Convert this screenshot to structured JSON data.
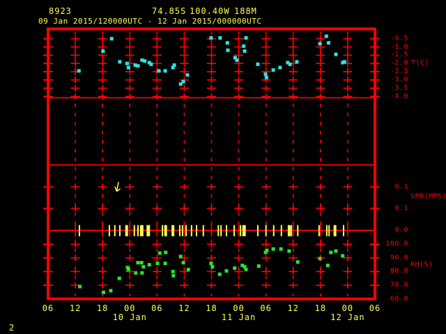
{
  "header": {
    "station_id": "8923",
    "latitude": "74.85S",
    "longitude": "100.40W",
    "elevation": "188M",
    "period": "09 Jan 2015/120000UTC - 12 Jan 2015/000000UTC"
  },
  "page_number": "2",
  "colors": {
    "background": "#000000",
    "frame": "#ff0000",
    "axis_text": "#ff0000",
    "label_text": "#ffff4d",
    "temperature": "#2fe3e3",
    "humidity": "#2ee02e",
    "wind": "#ffff55"
  },
  "x_axis": {
    "hour_labels": [
      "06",
      "12",
      "18",
      "00",
      "06",
      "12",
      "18",
      "00",
      "06",
      "12",
      "18",
      "00",
      "06"
    ],
    "date_labels": [
      {
        "label": "10 Jan",
        "tick_index": 3
      },
      {
        "label": "11 Jan",
        "tick_index": 7
      },
      {
        "label": "12 Jan",
        "tick_index": 11
      }
    ],
    "interval_hours": 6,
    "total_hours": 72
  },
  "chart_data": [
    {
      "type": "scatter",
      "panel": "temperature",
      "ylabel": "T(C)",
      "marker": "square",
      "color": "#2fe3e3",
      "y_tick_labels": [
        "-0.5",
        "-1.0",
        "-1.5",
        "-2.0",
        "-2.5",
        "-3.0",
        "-3.5",
        "-4.0"
      ],
      "y_tick_values": [
        -0.5,
        -1.0,
        -1.5,
        -2.0,
        -2.5,
        -3.0,
        -3.5,
        -4.0
      ],
      "ylim": [
        0.1,
        -4.1
      ],
      "points_hour_value": [
        [
          6.8,
          -2.45
        ],
        [
          12.1,
          -1.25
        ],
        [
          14.0,
          -0.5
        ],
        [
          15.8,
          -1.9
        ],
        [
          17.4,
          -2.0
        ],
        [
          17.7,
          -2.25
        ],
        [
          19.2,
          -2.1
        ],
        [
          19.8,
          -2.15
        ],
        [
          20.7,
          -1.8
        ],
        [
          21.3,
          -1.85
        ],
        [
          22.3,
          -1.95
        ],
        [
          22.7,
          -2.05
        ],
        [
          24.4,
          -2.45
        ],
        [
          25.8,
          -2.45
        ],
        [
          27.5,
          -2.25
        ],
        [
          27.8,
          -2.1
        ],
        [
          29.2,
          -3.25
        ],
        [
          29.8,
          -3.1
        ],
        [
          30.7,
          -2.7
        ],
        [
          35.9,
          -0.45
        ],
        [
          37.9,
          -0.45
        ],
        [
          39.5,
          -0.75
        ],
        [
          39.6,
          -1.2
        ],
        [
          41.2,
          -1.65
        ],
        [
          41.6,
          -1.8
        ],
        [
          43.1,
          -0.95
        ],
        [
          43.3,
          -1.25
        ],
        [
          43.6,
          -0.45
        ],
        [
          46.2,
          -2.05
        ],
        [
          47.9,
          -2.65
        ],
        [
          48.1,
          -2.85
        ],
        [
          49.6,
          -2.4
        ],
        [
          51.1,
          -2.25
        ],
        [
          52.8,
          -1.95
        ],
        [
          53.3,
          -2.05
        ],
        [
          54.8,
          -1.9
        ],
        [
          59.9,
          -0.8
        ],
        [
          61.3,
          -0.35
        ],
        [
          61.8,
          -0.75
        ],
        [
          63.4,
          -1.45
        ],
        [
          64.9,
          -1.95
        ],
        [
          65.3,
          -1.9
        ]
      ]
    },
    {
      "type": "scatter",
      "panel": "wind-speed",
      "ylabel": "SPD(MPS)",
      "color": "#ffff55",
      "y_tick_labels": [
        "0.1",
        "0.1",
        "0.0"
      ],
      "calm_barb_hours": [
        6.9,
        13.5,
        14.7,
        15.8,
        19.0,
        19.8,
        20.4,
        22.3,
        25.2,
        29.0,
        29.6,
        30.4,
        31.6,
        32.7,
        34.2,
        37.5,
        38.1,
        39.3,
        41.0,
        42.4,
        43.4,
        46.2,
        48.0,
        49.7,
        51.4,
        53.6,
        55.0,
        59.7,
        61.4,
        61.9,
        65.1
      ],
      "double_barb_hours": [
        17.3,
        20.7,
        22.0,
        25.9,
        27.5,
        43.1,
        53.1,
        63.2
      ],
      "vector_arrow_hour": 15.2
    },
    {
      "type": "scatter",
      "panel": "relative-humidity",
      "ylabel": "RH(%)",
      "marker": "square",
      "color": "#2ee02e",
      "y_tick_labels": [
        "100.0",
        "90.0",
        "80.0",
        "70.0",
        "60.0"
      ],
      "y_tick_values": [
        100,
        90,
        80,
        70,
        60
      ],
      "ylim": [
        104,
        60
      ],
      "points_hour_value": [
        [
          7.0,
          69
        ],
        [
          12.2,
          64.8
        ],
        [
          13.8,
          66
        ],
        [
          15.7,
          75
        ],
        [
          17.5,
          83
        ],
        [
          17.7,
          81.5
        ],
        [
          19.3,
          79
        ],
        [
          19.8,
          86.5
        ],
        [
          20.6,
          86.5
        ],
        [
          20.7,
          79
        ],
        [
          21.0,
          83.5
        ],
        [
          22.3,
          85
        ],
        [
          24.1,
          86
        ],
        [
          24.6,
          93.5
        ],
        [
          25.8,
          86
        ],
        [
          25.9,
          94
        ],
        [
          27.5,
          80
        ],
        [
          27.6,
          77
        ],
        [
          29.2,
          91
        ],
        [
          29.8,
          86.5
        ],
        [
          30.9,
          81.5
        ],
        [
          35.9,
          86
        ],
        [
          36.2,
          83.5
        ],
        [
          37.8,
          78
        ],
        [
          39.3,
          80.5
        ],
        [
          41.1,
          82.5
        ],
        [
          42.8,
          84.5
        ],
        [
          43.3,
          83.5
        ],
        [
          43.6,
          81.5
        ],
        [
          46.4,
          84
        ],
        [
          47.9,
          94
        ],
        [
          48.2,
          95.5
        ],
        [
          49.6,
          96.5
        ],
        [
          51.3,
          96.5
        ],
        [
          53.1,
          95
        ],
        [
          55.0,
          87
        ],
        [
          59.9,
          89.5
        ],
        [
          61.6,
          84.5
        ],
        [
          62.3,
          94
        ],
        [
          63.4,
          95
        ],
        [
          64.9,
          91.5
        ]
      ]
    }
  ]
}
